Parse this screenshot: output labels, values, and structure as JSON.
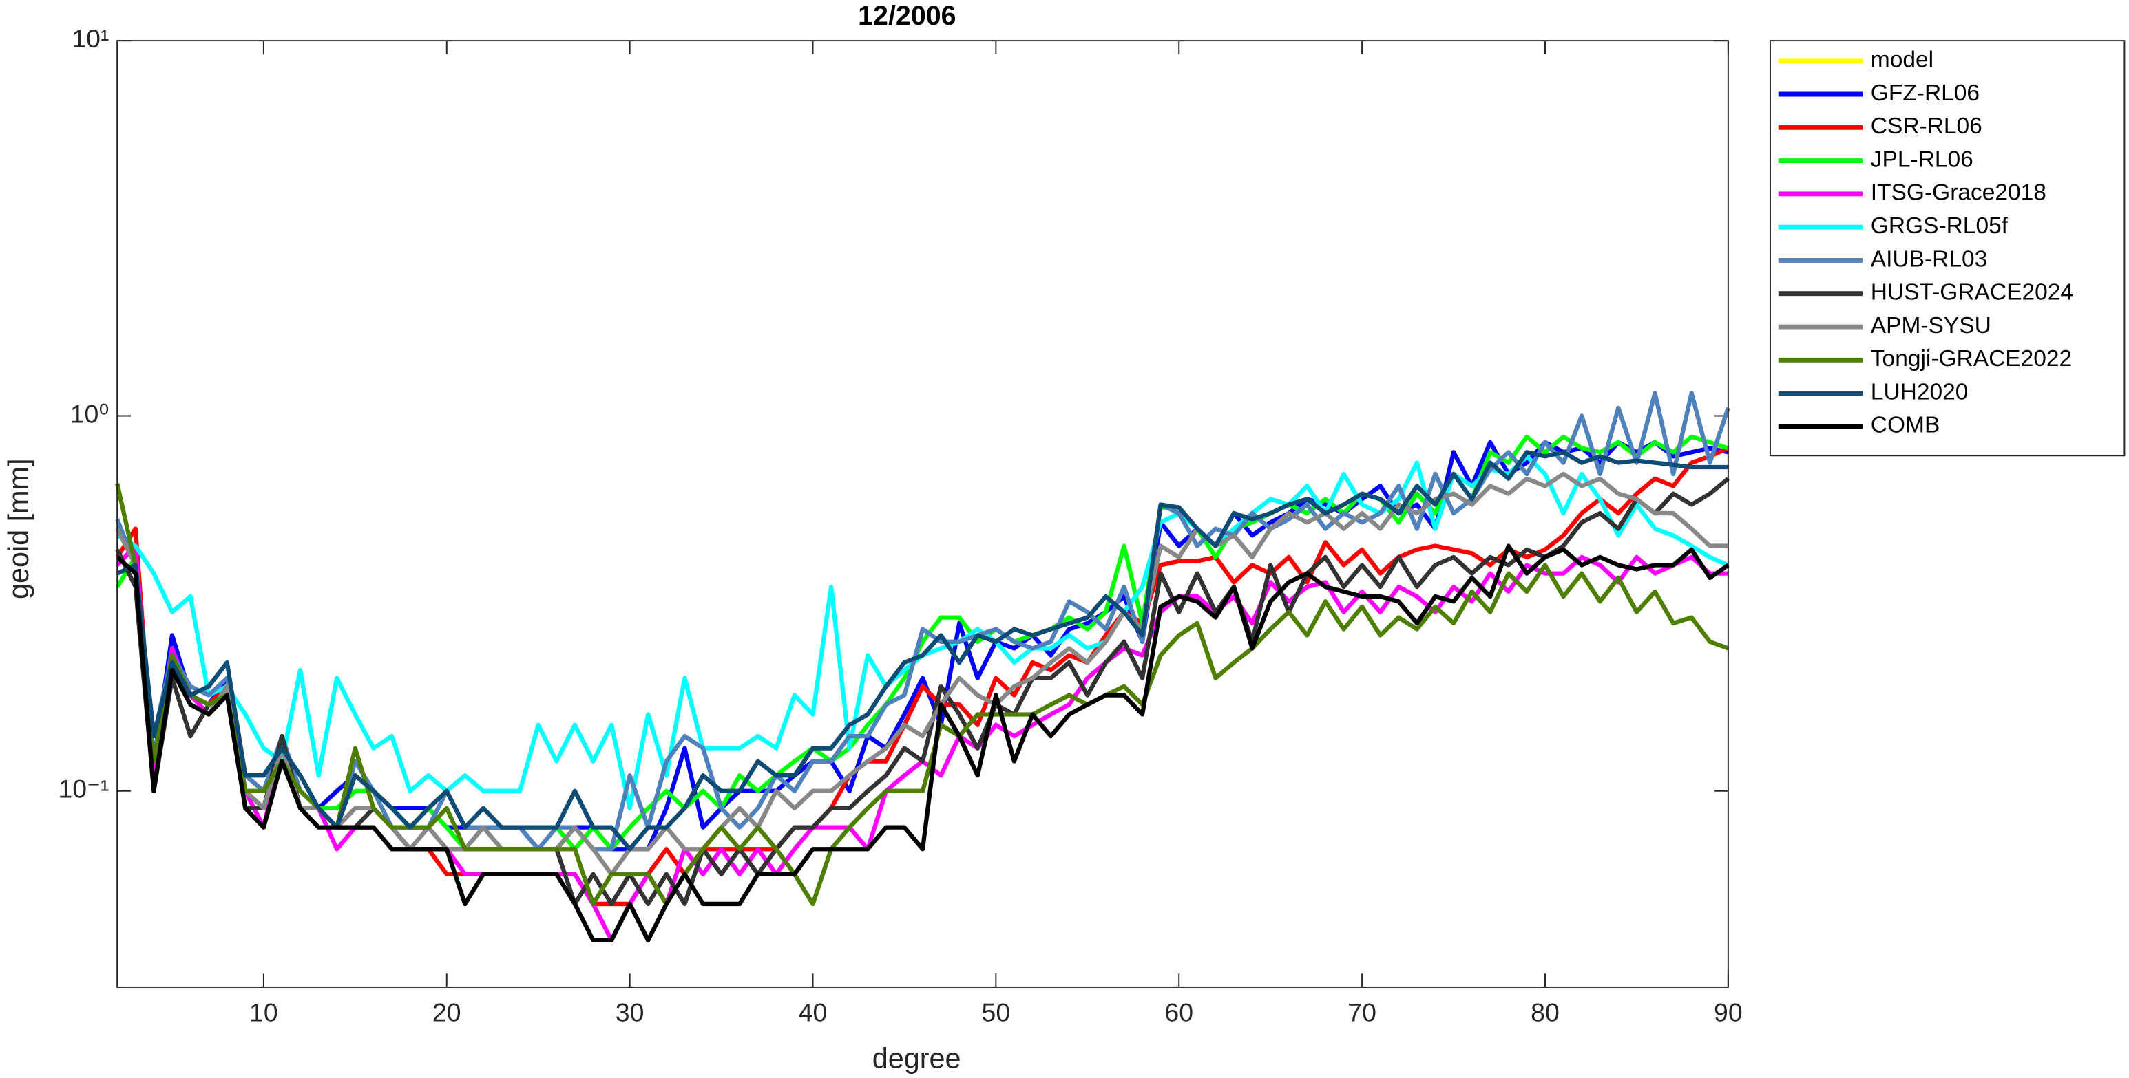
{
  "chart_data": {
    "type": "line",
    "title": "12/2006",
    "x_label": "degree",
    "y_label": "geoid [mm]",
    "log_y": true,
    "grid": false,
    "legend_position": "outside-right",
    "xlim": [
      2,
      90
    ],
    "xticks": [
      10,
      20,
      30,
      40,
      50,
      60,
      70,
      80,
      90
    ],
    "ylim": [
      0.03,
      10
    ],
    "yticks": [
      {
        "value": 0.1,
        "label": "10⁻¹"
      },
      {
        "value": 1,
        "label": "10⁰"
      },
      {
        "value": 10,
        "label": "10¹"
      }
    ],
    "x": [
      2,
      3,
      4,
      5,
      6,
      7,
      8,
      9,
      10,
      11,
      12,
      13,
      14,
      15,
      16,
      17,
      18,
      19,
      20,
      21,
      22,
      23,
      24,
      25,
      26,
      27,
      28,
      29,
      30,
      31,
      32,
      33,
      34,
      35,
      36,
      37,
      38,
      39,
      40,
      41,
      42,
      43,
      44,
      45,
      46,
      47,
      48,
      49,
      50,
      51,
      52,
      53,
      54,
      55,
      56,
      57,
      58,
      59,
      60,
      61,
      62,
      63,
      64,
      65,
      66,
      67,
      68,
      69,
      70,
      71,
      72,
      73,
      74,
      75,
      76,
      77,
      78,
      79,
      80,
      81,
      82,
      83,
      84,
      85,
      86,
      87,
      88,
      89,
      90
    ],
    "series": [
      {
        "name": "model",
        "color": "#ffff00",
        "values": [
          null,
          null,
          null,
          null,
          null,
          null,
          null,
          null,
          null,
          null,
          null,
          null,
          null,
          null,
          null,
          null,
          null,
          null,
          null,
          null,
          null,
          null,
          null,
          null,
          null,
          null,
          null,
          null,
          null,
          null,
          null,
          null,
          null,
          null,
          null,
          null,
          null,
          null,
          null,
          null,
          null,
          null,
          null,
          null,
          null,
          null,
          null,
          null,
          null,
          null,
          null,
          null,
          null,
          null,
          null,
          null,
          null,
          null,
          null,
          null,
          null,
          null,
          null,
          null,
          null,
          null,
          null,
          null,
          null,
          null,
          null,
          null,
          null,
          null,
          null,
          null,
          null,
          null,
          null,
          null,
          null,
          null,
          null,
          null,
          null,
          null,
          null,
          null,
          null
        ]
      },
      {
        "name": "GFZ-RL06",
        "color": "#0000ff",
        "values": [
          0.4,
          0.45,
          0.12,
          0.26,
          0.18,
          0.17,
          0.2,
          0.1,
          0.09,
          0.13,
          0.1,
          0.09,
          0.1,
          0.11,
          0.1,
          0.09,
          0.09,
          0.09,
          0.08,
          0.08,
          0.08,
          0.08,
          0.08,
          0.07,
          0.07,
          0.08,
          0.08,
          0.07,
          0.07,
          0.07,
          0.09,
          0.13,
          0.08,
          0.09,
          0.1,
          0.1,
          0.1,
          0.11,
          0.12,
          0.12,
          0.1,
          0.14,
          0.13,
          0.16,
          0.2,
          0.15,
          0.28,
          0.2,
          0.25,
          0.24,
          0.26,
          0.23,
          0.27,
          0.28,
          0.3,
          0.33,
          0.25,
          0.52,
          0.45,
          0.5,
          0.45,
          0.55,
          0.48,
          0.52,
          0.55,
          0.6,
          0.58,
          0.55,
          0.6,
          0.65,
          0.55,
          0.58,
          0.5,
          0.8,
          0.65,
          0.85,
          0.7,
          0.75,
          0.85,
          0.8,
          0.82,
          0.75,
          0.85,
          0.8,
          0.85,
          0.78,
          0.8,
          0.82,
          0.8
        ]
      },
      {
        "name": "CSR-RL06",
        "color": "#ff0000",
        "values": [
          0.42,
          0.5,
          0.11,
          0.22,
          0.18,
          0.17,
          0.19,
          0.1,
          0.08,
          0.13,
          0.09,
          0.09,
          0.08,
          0.09,
          0.09,
          0.08,
          0.07,
          0.07,
          0.06,
          0.06,
          0.06,
          0.06,
          0.06,
          0.06,
          0.06,
          0.06,
          0.05,
          0.05,
          0.05,
          0.06,
          0.07,
          0.06,
          0.07,
          0.07,
          0.07,
          0.07,
          0.07,
          0.08,
          0.08,
          0.09,
          0.11,
          0.12,
          0.12,
          0.15,
          0.19,
          0.17,
          0.17,
          0.15,
          0.2,
          0.18,
          0.22,
          0.21,
          0.23,
          0.22,
          0.26,
          0.3,
          0.28,
          0.4,
          0.41,
          0.41,
          0.42,
          0.36,
          0.4,
          0.38,
          0.42,
          0.36,
          0.46,
          0.4,
          0.44,
          0.38,
          0.42,
          0.44,
          0.45,
          0.44,
          0.43,
          0.4,
          0.44,
          0.42,
          0.44,
          0.48,
          0.55,
          0.6,
          0.55,
          0.62,
          0.68,
          0.65,
          0.75,
          0.78,
          0.82
        ]
      },
      {
        "name": "JPL-RL06",
        "color": "#00ff00",
        "values": [
          0.35,
          0.42,
          0.12,
          0.24,
          0.18,
          0.16,
          0.19,
          0.1,
          0.09,
          0.13,
          0.1,
          0.09,
          0.09,
          0.1,
          0.1,
          0.09,
          0.08,
          0.09,
          0.08,
          0.07,
          0.08,
          0.08,
          0.08,
          0.08,
          0.08,
          0.07,
          0.08,
          0.07,
          0.08,
          0.09,
          0.1,
          0.09,
          0.1,
          0.09,
          0.11,
          0.1,
          0.11,
          0.12,
          0.13,
          0.12,
          0.13,
          0.15,
          0.17,
          0.2,
          0.25,
          0.29,
          0.29,
          0.25,
          0.27,
          0.25,
          0.26,
          0.27,
          0.29,
          0.27,
          0.3,
          0.45,
          0.28,
          0.57,
          0.57,
          0.5,
          0.42,
          0.5,
          0.52,
          0.55,
          0.58,
          0.55,
          0.6,
          0.55,
          0.62,
          0.6,
          0.52,
          0.62,
          0.55,
          0.7,
          0.6,
          0.8,
          0.75,
          0.88,
          0.8,
          0.88,
          0.82,
          0.8,
          0.85,
          0.78,
          0.85,
          0.8,
          0.88,
          0.85,
          0.82
        ]
      },
      {
        "name": "ITSG-Grace2018",
        "color": "#ff00ff",
        "values": [
          0.4,
          0.45,
          0.11,
          0.24,
          0.18,
          0.16,
          0.19,
          0.1,
          0.08,
          0.13,
          0.09,
          0.09,
          0.07,
          0.08,
          0.08,
          0.07,
          0.07,
          0.07,
          0.07,
          0.06,
          0.06,
          0.06,
          0.06,
          0.06,
          0.06,
          0.06,
          0.05,
          0.04,
          0.05,
          0.06,
          0.05,
          0.07,
          0.06,
          0.07,
          0.06,
          0.07,
          0.06,
          0.07,
          0.08,
          0.08,
          0.08,
          0.07,
          0.1,
          0.11,
          0.12,
          0.11,
          0.14,
          0.13,
          0.15,
          0.14,
          0.15,
          0.16,
          0.17,
          0.2,
          0.22,
          0.24,
          0.23,
          0.3,
          0.33,
          0.33,
          0.3,
          0.33,
          0.28,
          0.36,
          0.32,
          0.35,
          0.36,
          0.3,
          0.34,
          0.3,
          0.35,
          0.33,
          0.3,
          0.35,
          0.32,
          0.38,
          0.34,
          0.4,
          0.38,
          0.38,
          0.42,
          0.4,
          0.36,
          0.42,
          0.38,
          0.4,
          0.42,
          0.38,
          0.38
        ]
      },
      {
        "name": "GRGS-RL05f",
        "color": "#00ffff",
        "values": [
          0.48,
          0.45,
          0.38,
          0.3,
          0.33,
          0.18,
          0.19,
          0.16,
          0.13,
          0.12,
          0.21,
          0.11,
          0.2,
          0.16,
          0.13,
          0.14,
          0.1,
          0.11,
          0.1,
          0.11,
          0.1,
          0.1,
          0.1,
          0.15,
          0.12,
          0.15,
          0.12,
          0.15,
          0.09,
          0.16,
          0.11,
          0.2,
          0.13,
          0.13,
          0.13,
          0.14,
          0.13,
          0.18,
          0.16,
          0.35,
          0.13,
          0.23,
          0.19,
          0.21,
          0.23,
          0.24,
          0.25,
          0.27,
          0.25,
          0.22,
          0.24,
          0.24,
          0.26,
          0.24,
          0.25,
          0.3,
          0.35,
          0.52,
          0.55,
          0.5,
          0.45,
          0.5,
          0.55,
          0.6,
          0.58,
          0.65,
          0.55,
          0.7,
          0.58,
          0.55,
          0.6,
          0.75,
          0.5,
          0.7,
          0.65,
          0.72,
          0.7,
          0.78,
          0.7,
          0.55,
          0.7,
          0.6,
          0.48,
          0.58,
          0.5,
          0.48,
          0.45,
          0.42,
          0.4
        ]
      },
      {
        "name": "AIUB-RL03",
        "color": "#4f81bd",
        "values": [
          0.53,
          0.4,
          0.14,
          0.23,
          0.19,
          0.18,
          0.2,
          0.11,
          0.1,
          0.14,
          0.1,
          0.09,
          0.08,
          0.12,
          0.1,
          0.08,
          0.08,
          0.08,
          0.1,
          0.08,
          0.08,
          0.08,
          0.08,
          0.07,
          0.08,
          0.08,
          0.07,
          0.07,
          0.11,
          0.08,
          0.12,
          0.14,
          0.13,
          0.09,
          0.08,
          0.09,
          0.11,
          0.1,
          0.12,
          0.12,
          0.14,
          0.14,
          0.17,
          0.18,
          0.27,
          0.25,
          0.25,
          0.26,
          0.27,
          0.25,
          0.24,
          0.25,
          0.32,
          0.3,
          0.27,
          0.35,
          0.25,
          0.58,
          0.55,
          0.45,
          0.5,
          0.48,
          0.55,
          0.5,
          0.53,
          0.58,
          0.5,
          0.55,
          0.52,
          0.55,
          0.65,
          0.5,
          0.7,
          0.55,
          0.6,
          0.72,
          0.8,
          0.7,
          0.85,
          0.75,
          1.0,
          0.7,
          1.05,
          0.75,
          1.15,
          0.7,
          1.15,
          0.75,
          1.05
        ]
      },
      {
        "name": "HUST-GRACE2024",
        "color": "#333333",
        "values": [
          0.44,
          0.35,
          0.1,
          0.2,
          0.14,
          0.17,
          0.18,
          0.09,
          0.09,
          0.14,
          0.09,
          0.09,
          0.08,
          0.08,
          0.09,
          0.08,
          0.07,
          0.07,
          0.07,
          0.07,
          0.07,
          0.07,
          0.07,
          0.07,
          0.07,
          0.05,
          0.06,
          0.05,
          0.06,
          0.05,
          0.06,
          0.05,
          0.07,
          0.06,
          0.07,
          0.06,
          0.07,
          0.08,
          0.08,
          0.09,
          0.09,
          0.1,
          0.11,
          0.13,
          0.12,
          0.19,
          0.16,
          0.13,
          0.17,
          0.16,
          0.2,
          0.2,
          0.22,
          0.18,
          0.22,
          0.25,
          0.2,
          0.38,
          0.3,
          0.38,
          0.3,
          0.35,
          0.25,
          0.4,
          0.3,
          0.38,
          0.42,
          0.35,
          0.4,
          0.35,
          0.42,
          0.35,
          0.4,
          0.42,
          0.38,
          0.42,
          0.4,
          0.44,
          0.42,
          0.45,
          0.52,
          0.55,
          0.5,
          0.6,
          0.55,
          0.62,
          0.58,
          0.62,
          0.68
        ]
      },
      {
        "name": "APM-SYSU",
        "color": "#888888",
        "values": [
          0.5,
          0.4,
          0.12,
          0.21,
          0.17,
          0.16,
          0.19,
          0.1,
          0.09,
          0.13,
          0.09,
          0.09,
          0.08,
          0.09,
          0.09,
          0.08,
          0.07,
          0.08,
          0.07,
          0.07,
          0.08,
          0.07,
          0.07,
          0.07,
          0.07,
          0.08,
          0.07,
          0.06,
          0.07,
          0.07,
          0.08,
          0.07,
          0.07,
          0.08,
          0.09,
          0.08,
          0.1,
          0.09,
          0.1,
          0.1,
          0.11,
          0.12,
          0.13,
          0.15,
          0.14,
          0.17,
          0.2,
          0.18,
          0.17,
          0.19,
          0.2,
          0.22,
          0.24,
          0.22,
          0.25,
          0.3,
          0.27,
          0.45,
          0.42,
          0.5,
          0.45,
          0.48,
          0.42,
          0.5,
          0.55,
          0.52,
          0.55,
          0.5,
          0.55,
          0.5,
          0.58,
          0.55,
          0.6,
          0.62,
          0.58,
          0.65,
          0.62,
          0.68,
          0.65,
          0.7,
          0.65,
          0.68,
          0.62,
          0.6,
          0.55,
          0.55,
          0.5,
          0.45,
          0.45
        ]
      },
      {
        "name": "Tongji-GRACE2022",
        "color": "#4f7f00",
        "values": [
          0.66,
          0.4,
          0.12,
          0.23,
          0.18,
          0.17,
          0.18,
          0.1,
          0.1,
          0.12,
          0.1,
          0.09,
          0.08,
          0.13,
          0.09,
          0.08,
          0.08,
          0.08,
          0.09,
          0.07,
          0.07,
          0.07,
          0.07,
          0.07,
          0.07,
          0.07,
          0.05,
          0.06,
          0.06,
          0.06,
          0.05,
          0.06,
          0.07,
          0.08,
          0.07,
          0.08,
          0.07,
          0.06,
          0.05,
          0.07,
          0.08,
          0.09,
          0.1,
          0.1,
          0.1,
          0.15,
          0.14,
          0.16,
          0.16,
          0.16,
          0.16,
          0.17,
          0.18,
          0.17,
          0.18,
          0.19,
          0.17,
          0.23,
          0.26,
          0.28,
          0.2,
          0.22,
          0.24,
          0.27,
          0.3,
          0.26,
          0.32,
          0.27,
          0.31,
          0.26,
          0.29,
          0.27,
          0.31,
          0.28,
          0.34,
          0.3,
          0.38,
          0.34,
          0.4,
          0.33,
          0.38,
          0.32,
          0.37,
          0.3,
          0.34,
          0.28,
          0.29,
          0.25,
          0.24
        ]
      },
      {
        "name": "LUH2020",
        "color": "#0f4c75",
        "values": [
          0.38,
          0.4,
          0.14,
          0.22,
          0.18,
          0.19,
          0.22,
          0.11,
          0.11,
          0.13,
          0.11,
          0.09,
          0.08,
          0.11,
          0.1,
          0.09,
          0.08,
          0.09,
          0.1,
          0.08,
          0.09,
          0.08,
          0.08,
          0.08,
          0.08,
          0.1,
          0.08,
          0.08,
          0.07,
          0.08,
          0.08,
          0.09,
          0.11,
          0.1,
          0.1,
          0.12,
          0.11,
          0.11,
          0.13,
          0.13,
          0.15,
          0.16,
          0.19,
          0.22,
          0.23,
          0.26,
          0.22,
          0.26,
          0.25,
          0.27,
          0.26,
          0.27,
          0.28,
          0.29,
          0.33,
          0.3,
          0.26,
          0.58,
          0.57,
          0.5,
          0.45,
          0.55,
          0.53,
          0.55,
          0.58,
          0.6,
          0.55,
          0.58,
          0.62,
          0.6,
          0.55,
          0.65,
          0.58,
          0.7,
          0.6,
          0.75,
          0.68,
          0.8,
          0.78,
          0.8,
          0.75,
          0.78,
          0.75,
          0.76,
          0.75,
          0.74,
          0.73,
          0.73,
          0.73
        ]
      },
      {
        "name": "COMB",
        "color": "#000000",
        "values": [
          0.42,
          0.38,
          0.1,
          0.21,
          0.17,
          0.16,
          0.18,
          0.09,
          0.08,
          0.12,
          0.09,
          0.08,
          0.08,
          0.08,
          0.08,
          0.07,
          0.07,
          0.07,
          0.07,
          0.05,
          0.06,
          0.06,
          0.06,
          0.06,
          0.06,
          0.05,
          0.04,
          0.04,
          0.05,
          0.04,
          0.05,
          0.06,
          0.05,
          0.05,
          0.05,
          0.06,
          0.06,
          0.06,
          0.07,
          0.07,
          0.07,
          0.07,
          0.08,
          0.08,
          0.07,
          0.17,
          0.14,
          0.11,
          0.18,
          0.12,
          0.16,
          0.14,
          0.16,
          0.17,
          0.18,
          0.18,
          0.16,
          0.31,
          0.33,
          0.32,
          0.29,
          0.35,
          0.24,
          0.32,
          0.36,
          0.38,
          0.35,
          0.34,
          0.33,
          0.33,
          0.32,
          0.28,
          0.33,
          0.32,
          0.37,
          0.33,
          0.45,
          0.38,
          0.42,
          0.44,
          0.4,
          0.42,
          0.4,
          0.39,
          0.4,
          0.4,
          0.44,
          0.37,
          0.4
        ]
      }
    ]
  }
}
